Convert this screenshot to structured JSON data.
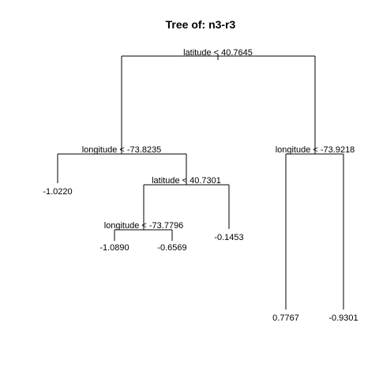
{
  "title": "Tree of: n3-r3",
  "colors": {
    "line": "#000000",
    "text": "#000000",
    "background": "#ffffff"
  },
  "tree": {
    "root": {
      "label": "latitude < 40.7645",
      "left": {
        "label": "longitude < -73.8235",
        "left": {
          "leaf": "-1.0220"
        },
        "right": {
          "label": "latitude < 40.7301",
          "left": {
            "label": "longitude < -73.7796",
            "left": {
              "leaf": "-1.0890"
            },
            "right": {
              "leaf": "-0.6569"
            }
          },
          "right": {
            "leaf": "-0.1453"
          }
        }
      },
      "right": {
        "label": "longitude < -73.9218",
        "left": {
          "leaf": "0.7767"
        },
        "right": {
          "leaf": "-0.9301"
        }
      }
    }
  }
}
